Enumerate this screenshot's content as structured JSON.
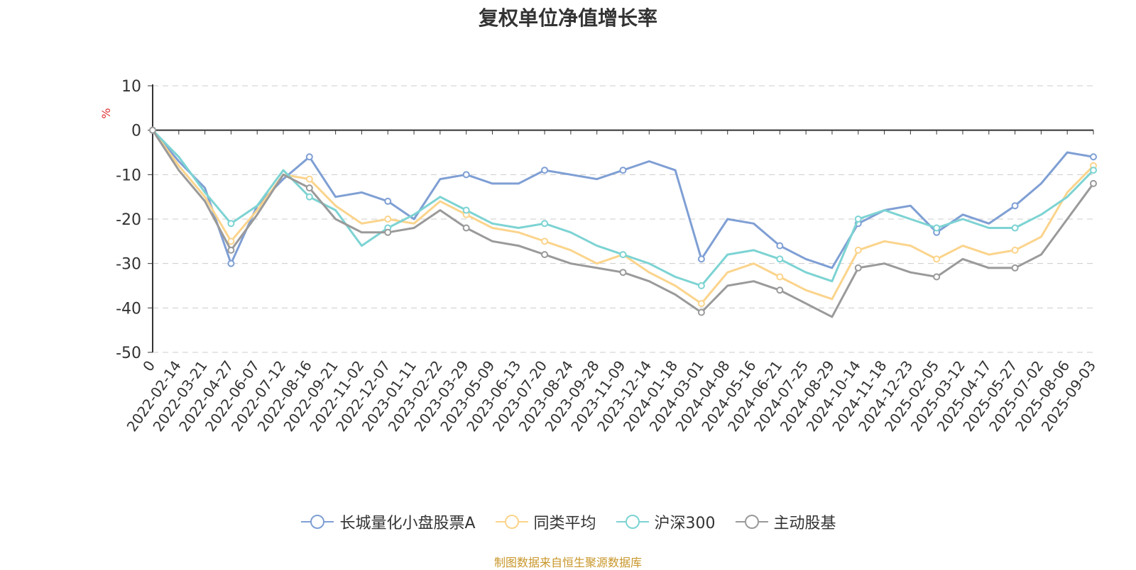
{
  "chart_data": {
    "type": "line",
    "title": "复权单位净值增长率",
    "ylabel": "%",
    "ylim": [
      -50,
      10
    ],
    "yticks": [
      10,
      0,
      -10,
      -20,
      -30,
      -40,
      -50
    ],
    "x_tick_labels": [
      "0",
      "2022-02-14",
      "2022-03-21",
      "2022-04-27",
      "2022-06-07",
      "2022-07-12",
      "2022-08-16",
      "2022-09-21",
      "2022-11-02",
      "2022-12-07",
      "2023-01-11",
      "2023-02-22",
      "2023-03-29",
      "2023-05-09",
      "2023-06-13",
      "2023-07-20",
      "2023-08-24",
      "2023-09-28",
      "2023-11-09",
      "2023-12-14",
      "2024-01-18",
      "2024-03-01",
      "2024-04-08",
      "2024-05-16",
      "2024-06-21",
      "2024-07-25",
      "2024-08-29",
      "2024-10-14",
      "2024-11-18",
      "2024-12-23",
      "2025-02-05",
      "2025-03-12",
      "2025-04-17",
      "2025-05-27",
      "2025-07-02",
      "2025-08-06",
      "2025-09-03"
    ],
    "grid": true,
    "legend_position": "bottom",
    "series": [
      {
        "name": "长城量化小盘股票A",
        "color": "#7f9fd4",
        "values": [
          0,
          -7,
          -13,
          -30,
          -17,
          -11,
          -6,
          -15,
          -14,
          -16,
          -20,
          -11,
          -10,
          -12,
          -12,
          -9,
          -10,
          -11,
          -9,
          -7,
          -9,
          -29,
          -20,
          -21,
          -26,
          -29,
          -31,
          -21,
          -18,
          -17,
          -23,
          -19,
          -21,
          -17,
          -12,
          -5,
          -6
        ]
      },
      {
        "name": "同类平均",
        "color": "#fbd48c",
        "values": [
          0,
          -8,
          -15,
          -25,
          -18,
          -10,
          -11,
          -17,
          -21,
          -20,
          -21,
          -16,
          -19,
          -22,
          -23,
          -25,
          -27,
          -30,
          -28,
          -32,
          -35,
          -39,
          -32,
          -30,
          -33,
          -36,
          -38,
          -27,
          -25,
          -26,
          -29,
          -26,
          -28,
          -27,
          -24,
          -14,
          -8
        ]
      },
      {
        "name": "沪深300",
        "color": "#7dd3d3",
        "values": [
          0,
          -6,
          -14,
          -21,
          -17,
          -9,
          -15,
          -18,
          -26,
          -22,
          -19,
          -15,
          -18,
          -21,
          -22,
          -21,
          -23,
          -26,
          -28,
          -30,
          -33,
          -35,
          -28,
          -27,
          -29,
          -32,
          -34,
          -20,
          -18,
          -20,
          -22,
          -20,
          -22,
          -22,
          -19,
          -15,
          -9
        ]
      },
      {
        "name": "主动股基",
        "color": "#9a9a9a",
        "values": [
          0,
          -9,
          -16,
          -27,
          -19,
          -10,
          -13,
          -20,
          -23,
          -23,
          -22,
          -18,
          -22,
          -25,
          -26,
          -28,
          -30,
          -31,
          -32,
          -34,
          -37,
          -41,
          -35,
          -34,
          -36,
          -39,
          -42,
          -31,
          -30,
          -32,
          -33,
          -29,
          -31,
          -31,
          -28,
          -20,
          -12
        ]
      }
    ]
  },
  "source_note": "制图数据来自恒生聚源数据库"
}
